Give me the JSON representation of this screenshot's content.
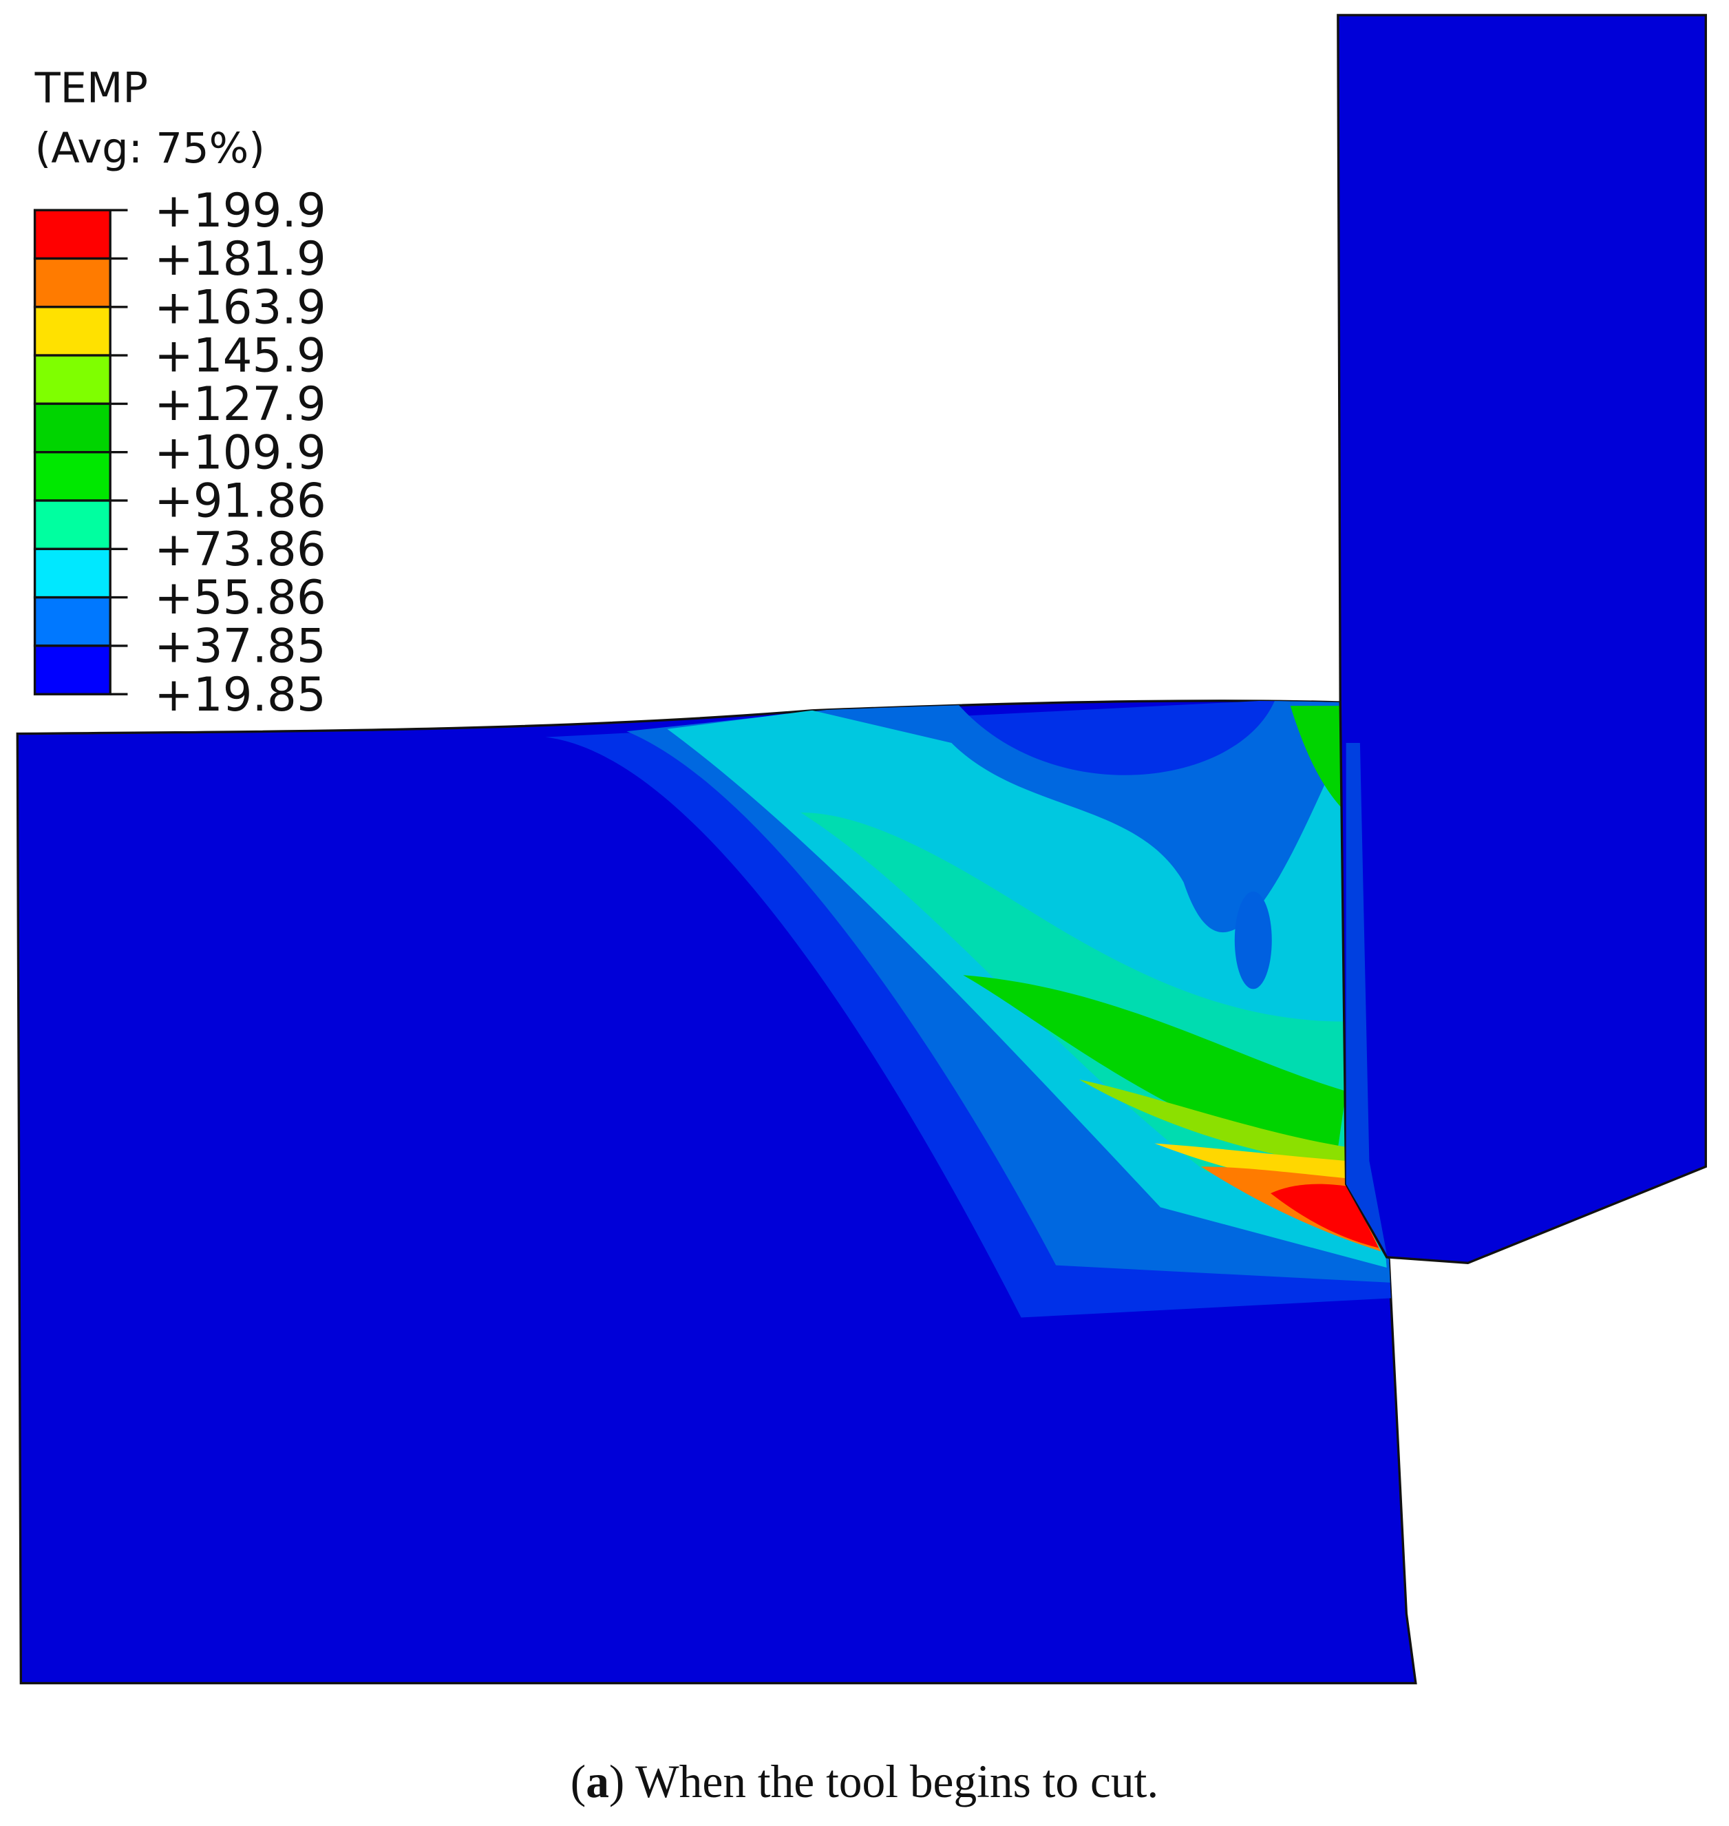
{
  "legend": {
    "title": "TEMP",
    "subtitle": "(Avg: 75%)",
    "labels": [
      "+199.9",
      "+181.9",
      "+163.9",
      "+145.9",
      "+127.9",
      "+109.9",
      "+91.86",
      "+73.86",
      "+55.86",
      "+37.85",
      "+19.85"
    ],
    "colors": [
      "#ff0000",
      "#ff7b00",
      "#ffe100",
      "#7fff00",
      "#00d400",
      "#00e800",
      "#00ffa0",
      "#00e8ff",
      "#0078ff",
      "#0000ff"
    ]
  },
  "caption": {
    "open": "(",
    "label": "a",
    "rest": ") When the tool begins to cut."
  }
}
